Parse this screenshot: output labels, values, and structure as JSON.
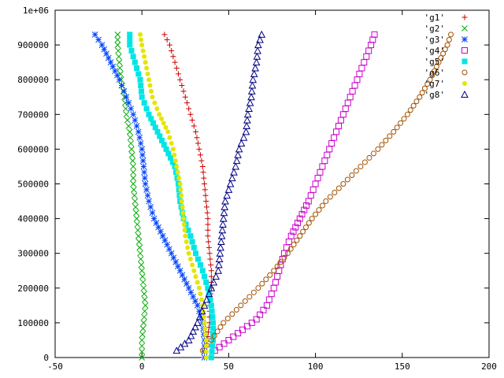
{
  "chart_data": {
    "type": "scatter",
    "title": "",
    "xlabel": "",
    "ylabel": "",
    "xlim": [
      -50,
      200
    ],
    "ylim": [
      0,
      1000000
    ],
    "grid": false,
    "legend_position": "top-right",
    "x_ticks": [
      {
        "value": -50,
        "label": "-50"
      },
      {
        "value": 0,
        "label": "0"
      },
      {
        "value": 50,
        "label": "50"
      },
      {
        "value": 100,
        "label": "100"
      },
      {
        "value": 150,
        "label": "150"
      },
      {
        "value": 200,
        "label": "200"
      }
    ],
    "y_ticks": [
      {
        "value": 0,
        "label": "0"
      },
      {
        "value": 100000,
        "label": "100000"
      },
      {
        "value": 200000,
        "label": "200000"
      },
      {
        "value": 300000,
        "label": "300000"
      },
      {
        "value": 400000,
        "label": "400000"
      },
      {
        "value": 500000,
        "label": "500000"
      },
      {
        "value": 600000,
        "label": "600000"
      },
      {
        "value": 700000,
        "label": "700000"
      },
      {
        "value": 800000,
        "label": "800000"
      },
      {
        "value": 900000,
        "label": "900000"
      },
      {
        "value": 1000000,
        "label": "1e+06"
      }
    ],
    "series": [
      {
        "name": "'g1'",
        "color": "#cc0000",
        "marker": "plus",
        "points": [
          [
            36,
            20000
          ],
          [
            38,
            60000
          ],
          [
            39,
            100000
          ],
          [
            39,
            150000
          ],
          [
            40,
            200000
          ],
          [
            40,
            250000
          ],
          [
            39,
            300000
          ],
          [
            38,
            350000
          ],
          [
            38,
            400000
          ],
          [
            37,
            450000
          ],
          [
            36,
            500000
          ],
          [
            35,
            550000
          ],
          [
            33,
            600000
          ],
          [
            31,
            650000
          ],
          [
            28,
            700000
          ],
          [
            25,
            750000
          ],
          [
            22,
            800000
          ],
          [
            19,
            850000
          ],
          [
            16,
            900000
          ],
          [
            13,
            930000
          ]
        ]
      },
      {
        "name": "'g2'",
        "color": "#00aa00",
        "marker": "cross",
        "points": [
          [
            0,
            0
          ],
          [
            0,
            50000
          ],
          [
            1,
            100000
          ],
          [
            2,
            150000
          ],
          [
            1,
            200000
          ],
          [
            0,
            250000
          ],
          [
            -1,
            300000
          ],
          [
            -2,
            350000
          ],
          [
            -3,
            400000
          ],
          [
            -4,
            450000
          ],
          [
            -5,
            500000
          ],
          [
            -5,
            550000
          ],
          [
            -6,
            600000
          ],
          [
            -7,
            650000
          ],
          [
            -9,
            700000
          ],
          [
            -10,
            750000
          ],
          [
            -12,
            800000
          ],
          [
            -13,
            850000
          ],
          [
            -14,
            900000
          ],
          [
            -14,
            930000
          ]
        ]
      },
      {
        "name": "'g3'",
        "color": "#0044ff",
        "marker": "star",
        "points": [
          [
            36,
            0
          ],
          [
            36,
            50000
          ],
          [
            35,
            100000
          ],
          [
            32,
            150000
          ],
          [
            27,
            200000
          ],
          [
            22,
            250000
          ],
          [
            17,
            300000
          ],
          [
            12,
            350000
          ],
          [
            7,
            400000
          ],
          [
            4,
            450000
          ],
          [
            2,
            500000
          ],
          [
            1,
            550000
          ],
          [
            0,
            600000
          ],
          [
            -2,
            650000
          ],
          [
            -5,
            700000
          ],
          [
            -9,
            750000
          ],
          [
            -13,
            800000
          ],
          [
            -18,
            850000
          ],
          [
            -23,
            900000
          ],
          [
            -27,
            930000
          ]
        ]
      },
      {
        "name": "'g4'",
        "color": "#cc00cc",
        "marker": "square",
        "points": [
          [
            42,
            20000
          ],
          [
            50,
            50000
          ],
          [
            58,
            80000
          ],
          [
            66,
            110000
          ],
          [
            72,
            150000
          ],
          [
            76,
            200000
          ],
          [
            79,
            250000
          ],
          [
            82,
            300000
          ],
          [
            86,
            350000
          ],
          [
            91,
            400000
          ],
          [
            96,
            450000
          ],
          [
            100,
            500000
          ],
          [
            104,
            550000
          ],
          [
            108,
            600000
          ],
          [
            112,
            650000
          ],
          [
            116,
            700000
          ],
          [
            120,
            750000
          ],
          [
            124,
            800000
          ],
          [
            128,
            850000
          ],
          [
            132,
            900000
          ],
          [
            134,
            930000
          ]
        ]
      },
      {
        "name": "'g5'",
        "color": "#00e5e5",
        "marker": "filled-square",
        "points": [
          [
            40,
            0
          ],
          [
            41,
            50000
          ],
          [
            41,
            100000
          ],
          [
            40,
            150000
          ],
          [
            38,
            200000
          ],
          [
            35,
            250000
          ],
          [
            31,
            300000
          ],
          [
            28,
            350000
          ],
          [
            24,
            400000
          ],
          [
            22,
            450000
          ],
          [
            21,
            500000
          ],
          [
            19,
            550000
          ],
          [
            14,
            600000
          ],
          [
            9,
            650000
          ],
          [
            4,
            700000
          ],
          [
            0,
            750000
          ],
          [
            -1,
            800000
          ],
          [
            -4,
            850000
          ],
          [
            -7,
            900000
          ],
          [
            -7,
            930000
          ]
        ]
      },
      {
        "name": "'g6'",
        "color": "#a05000",
        "marker": "circle",
        "points": [
          [
            35,
            20000
          ],
          [
            40,
            50000
          ],
          [
            47,
            100000
          ],
          [
            57,
            150000
          ],
          [
            67,
            200000
          ],
          [
            76,
            250000
          ],
          [
            84,
            300000
          ],
          [
            91,
            350000
          ],
          [
            98,
            400000
          ],
          [
            106,
            450000
          ],
          [
            116,
            500000
          ],
          [
            126,
            550000
          ],
          [
            136,
            600000
          ],
          [
            145,
            650000
          ],
          [
            153,
            700000
          ],
          [
            160,
            750000
          ],
          [
            166,
            800000
          ],
          [
            171,
            850000
          ],
          [
            176,
            900000
          ],
          [
            178,
            930000
          ]
        ]
      },
      {
        "name": "'g7'",
        "color": "#e5e500",
        "marker": "filled-circle",
        "points": [
          [
            37,
            0
          ],
          [
            37,
            50000
          ],
          [
            36,
            100000
          ],
          [
            35,
            150000
          ],
          [
            33,
            200000
          ],
          [
            30,
            250000
          ],
          [
            27,
            300000
          ],
          [
            25,
            350000
          ],
          [
            24,
            400000
          ],
          [
            23,
            450000
          ],
          [
            22,
            500000
          ],
          [
            20,
            550000
          ],
          [
            18,
            600000
          ],
          [
            15,
            650000
          ],
          [
            10,
            700000
          ],
          [
            6,
            750000
          ],
          [
            4,
            800000
          ],
          [
            2,
            850000
          ],
          [
            0,
            900000
          ],
          [
            -1,
            930000
          ]
        ]
      },
      {
        "name": "'g8'",
        "color": "#000080",
        "marker": "triangle",
        "points": [
          [
            20,
            20000
          ],
          [
            27,
            50000
          ],
          [
            32,
            100000
          ],
          [
            36,
            150000
          ],
          [
            40,
            200000
          ],
          [
            44,
            250000
          ],
          [
            45,
            300000
          ],
          [
            46,
            350000
          ],
          [
            47,
            400000
          ],
          [
            48,
            450000
          ],
          [
            51,
            500000
          ],
          [
            54,
            550000
          ],
          [
            56,
            600000
          ],
          [
            60,
            650000
          ],
          [
            61,
            700000
          ],
          [
            63,
            750000
          ],
          [
            64,
            800000
          ],
          [
            66,
            850000
          ],
          [
            67,
            900000
          ],
          [
            69,
            930000
          ]
        ]
      }
    ]
  }
}
